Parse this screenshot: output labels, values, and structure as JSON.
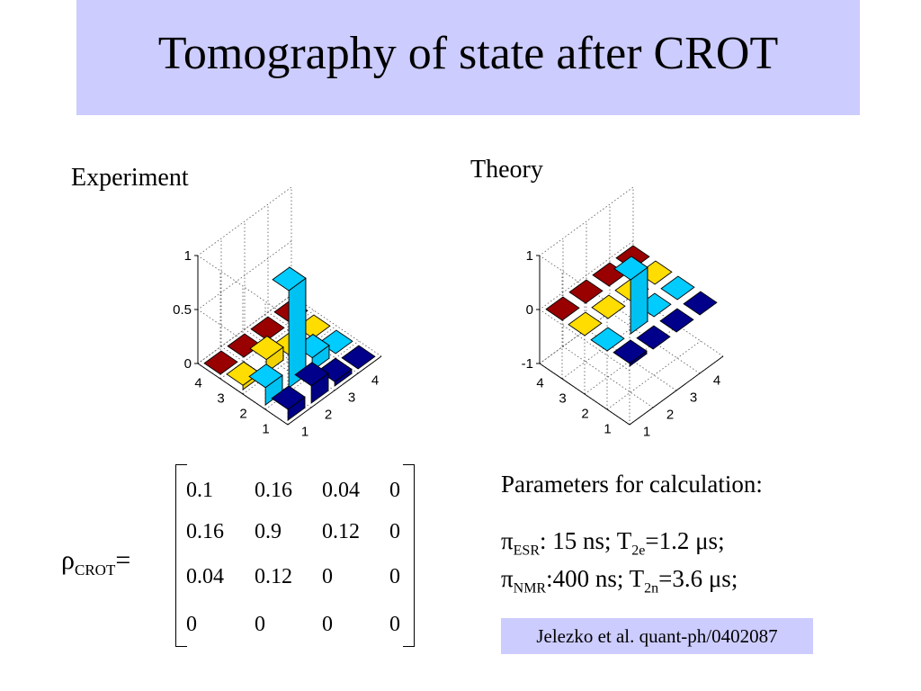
{
  "title": "Tomography of  state after CROT",
  "experiment_label": "Experiment",
  "theory_label": "Theory",
  "chart_data": [
    {
      "type": "bar3d",
      "rows": [
        "1",
        "2",
        "3",
        "4"
      ],
      "cols": [
        "1",
        "2",
        "3",
        "4"
      ],
      "zlim": [
        0,
        1
      ],
      "zticks": [
        "0",
        "0.5",
        "1"
      ],
      "values": [
        [
          0.1,
          0.16,
          0.04,
          0.0
        ],
        [
          0.16,
          0.9,
          0.12,
          0.0
        ],
        [
          0.04,
          0.12,
          0.0,
          0.0
        ],
        [
          0.0,
          0.0,
          0.0,
          0.0
        ]
      ],
      "colors": [
        [
          "#00008b",
          "#00008b",
          "#00008b",
          "#00008b"
        ],
        [
          "#00ccff",
          "#00ccff",
          "#00ccff",
          "#00ccff"
        ],
        [
          "#ffdd00",
          "#ffdd00",
          "#ffdd00",
          "#ffdd00"
        ],
        [
          "#990000",
          "#990000",
          "#990000",
          "#990000"
        ]
      ],
      "grid": true
    },
    {
      "type": "bar3d",
      "rows": [
        "1",
        "2",
        "3",
        "4"
      ],
      "cols": [
        "1",
        "2",
        "3",
        "4"
      ],
      "zlim": [
        -1,
        1
      ],
      "zticks": [
        "-1",
        "0",
        "1"
      ],
      "values": [
        [
          0.05,
          0.0,
          0.0,
          0.0
        ],
        [
          0.0,
          1.0,
          0.0,
          0.0
        ],
        [
          0.0,
          0.0,
          0.0,
          0.0
        ],
        [
          0.0,
          0.0,
          0.0,
          0.0
        ]
      ],
      "colors": [
        [
          "#00008b",
          "#00008b",
          "#00008b",
          "#00008b"
        ],
        [
          "#00ccff",
          "#00ccff",
          "#00ccff",
          "#00ccff"
        ],
        [
          "#ffdd00",
          "#ffdd00",
          "#ffdd00",
          "#ffdd00"
        ],
        [
          "#990000",
          "#990000",
          "#990000",
          "#990000"
        ]
      ],
      "grid": true
    }
  ],
  "matrix": {
    "label_main": "ρ",
    "label_sub": "CROT",
    "label_eq": "=",
    "rows": [
      [
        "0.1",
        "0.16",
        "0.04",
        "0"
      ],
      [
        "0.16",
        "0.9",
        "0.12",
        "0"
      ],
      [
        "0.04",
        "0.12",
        "0",
        "0"
      ],
      [
        "0",
        "0",
        "0",
        "0"
      ]
    ]
  },
  "params": {
    "title": "Parameters for calculation:",
    "line1": {
      "pi": "π",
      "sub1": "ESR",
      "mid": ": 15 ns; T",
      "sub2": "2e",
      "end": "=1.2 μs;"
    },
    "line2": {
      "pi": "π",
      "sub1": "NMR",
      "mid": ":400 ns; T",
      "sub2": "2n",
      "end": "=3.6 μs;"
    }
  },
  "reference": "Jelezko et al. quant-ph/0402087"
}
